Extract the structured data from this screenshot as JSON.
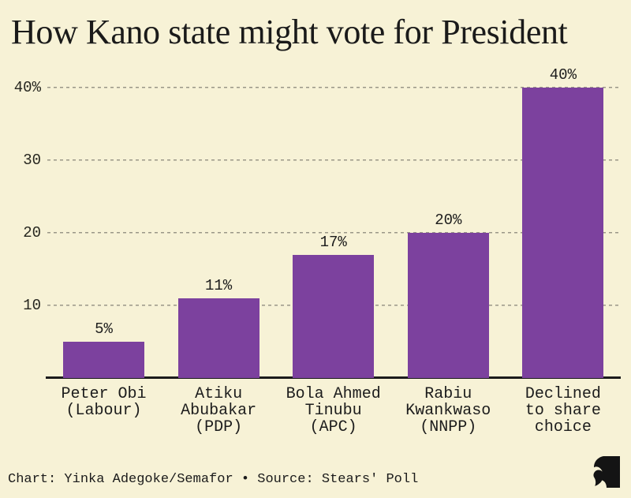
{
  "title": "How Kano state might vote for President",
  "footer": {
    "attribution": "Chart: Yinka Adegoke/Semafor • Source: Stears' Poll",
    "logo": "semafor-s-mark"
  },
  "colors": {
    "background": "#F7F2D6",
    "bar": "#7C419E",
    "grid": "#9A9788",
    "axis": "#1C1C1C",
    "text": "#1A1A1A",
    "logo": "#141414"
  },
  "chart_data": {
    "type": "bar",
    "title": "How Kano state might vote for President",
    "categories": [
      "Peter Obi\n(Labour)",
      "Atiku\nAbubakar\n(PDP)",
      "Bola Ahmed\nTinubu\n(APC)",
      "Rabiu\nKwankwaso\n(NNPP)",
      "Declined\nto share\nchoice"
    ],
    "values": [
      5,
      11,
      17,
      20,
      40
    ],
    "value_labels": [
      "5%",
      "11%",
      "17%",
      "20%",
      "40%"
    ],
    "y_ticks": [
      {
        "value": 40,
        "label": "40%"
      },
      {
        "value": 30,
        "label": "30"
      },
      {
        "value": 20,
        "label": "20"
      },
      {
        "value": 10,
        "label": "10"
      }
    ],
    "ylim": [
      0,
      43
    ],
    "xlabel": "",
    "ylabel": "",
    "grid": "horizontal-dashed",
    "legend": "none"
  }
}
